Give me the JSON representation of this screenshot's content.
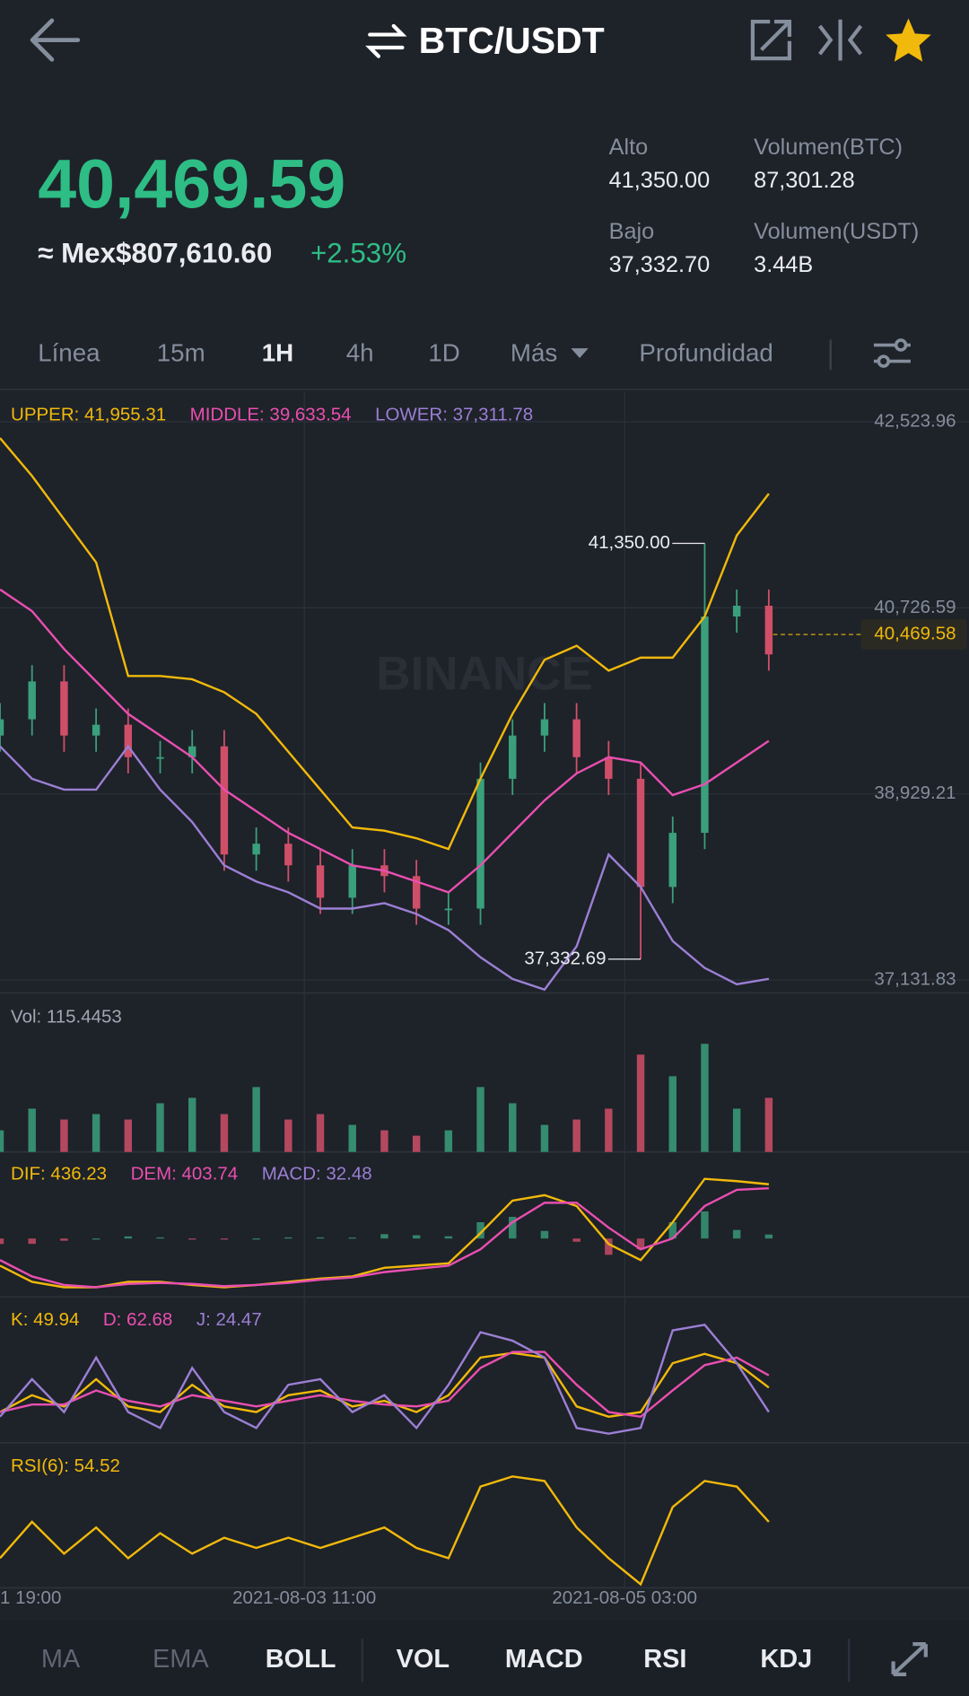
{
  "header": {
    "title": "BTC/USDT"
  },
  "ticker": {
    "price": "40,469.59",
    "fiat": "≈ Mex$807,610.60",
    "change": "+2.53%",
    "stats": [
      {
        "label": "Alto",
        "value": "41,350.00"
      },
      {
        "label": "Volumen(BTC)",
        "value": "87,301.28"
      },
      {
        "label": "Bajo",
        "value": "37,332.70"
      },
      {
        "label": "Volumen(USDT)",
        "value": "3.44B"
      }
    ]
  },
  "intervals": [
    "Línea",
    "15m",
    "1H",
    "4h",
    "1D",
    "Más",
    "Profundidad"
  ],
  "indicators": [
    "MA",
    "EMA",
    "BOLL",
    "VOL",
    "MACD",
    "RSI",
    "KDJ"
  ],
  "watermark": "BINANCE",
  "chart_data": [
    {
      "type": "candlestick",
      "x": [
        -38,
        -34,
        -30,
        -26,
        -22,
        -18,
        -14,
        -10,
        -6,
        -2,
        2,
        6,
        10,
        14,
        18,
        22,
        26,
        30,
        34,
        38,
        42,
        46,
        50,
        54,
        58
      ],
      "xlim": [
        -38,
        83
      ],
      "xticks": [
        {
          "value": -40,
          "label": "1 19:00"
        },
        {
          "value": 0,
          "label": "2021-08-03 11:00"
        },
        {
          "value": 40,
          "label": "2021-08-05 03:00"
        }
      ],
      "open": [
        39493,
        39650,
        40016,
        39493,
        39598,
        39284,
        39284,
        39389,
        38344,
        38448,
        38239,
        37926,
        38239,
        38135,
        37821,
        37821,
        39075,
        39493,
        39650,
        39284,
        39075,
        38030,
        38553,
        40643,
        40747
      ],
      "high": [
        39807,
        40173,
        40173,
        39755,
        39755,
        39441,
        39546,
        39546,
        38605,
        38605,
        38396,
        38396,
        38396,
        38292,
        37978,
        39232,
        39650,
        39807,
        39807,
        39441,
        39232,
        38710,
        41350.0,
        40904,
        40904
      ],
      "low": [
        39336,
        39493,
        39336,
        39336,
        39127,
        39127,
        39127,
        38187,
        38187,
        38082,
        37769,
        37769,
        37978,
        37664,
        37664,
        37664,
        38918,
        39336,
        39127,
        38918,
        37332.69,
        37873,
        38396,
        40486,
        40120
      ],
      "close": [
        39650,
        40016,
        39493,
        39598,
        39284,
        39284,
        39389,
        38344,
        38448,
        38239,
        37926,
        38239,
        38135,
        37821,
        37821,
        39075,
        39493,
        39650,
        39284,
        39075,
        38030,
        38553,
        40643,
        40747,
        40277
      ],
      "up_color": "#3a9f7b",
      "down_color": "#cf4f69",
      "series": [
        {
          "name": "UPPER: 41,955.31",
          "color": "#f0b90b",
          "values": [
            42367,
            42001,
            41583,
            41165,
            40068,
            40068,
            40037,
            39911,
            39702,
            39337,
            38971,
            38605,
            38574,
            38501,
            38397,
            39076,
            39702,
            40225,
            40361,
            40120,
            40246,
            40246,
            40643,
            41427,
            41830
          ]
        },
        {
          "name": "MIDDLE: 39,633.54",
          "color": "#e84fb0",
          "values": [
            40904,
            40695,
            40329,
            40016,
            39702,
            39493,
            39284,
            38971,
            38762,
            38553,
            38396,
            38239,
            38187,
            38083,
            37978,
            38239,
            38553,
            38866,
            39128,
            39284,
            39232,
            38918,
            39023,
            39232,
            39441
          ]
        },
        {
          "name": "LOWER: 37,311.78",
          "color": "#9b7fd4",
          "values": [
            39389,
            39075,
            38971,
            38971,
            39389,
            38971,
            38657,
            38239,
            38083,
            37978,
            37821,
            37821,
            37874,
            37769,
            37613,
            37351,
            37142,
            37038,
            37456,
            38344,
            38030,
            37508,
            37247,
            37090,
            37142
          ]
        }
      ],
      "ylim": [
        37027,
        42733
      ],
      "yticks": [
        {
          "value": 42523.96,
          "label": "42,523.96"
        },
        {
          "value": 40726.59,
          "label": "40,726.59"
        },
        {
          "value": 38929.21,
          "label": "38,929.21"
        },
        {
          "value": 37131.83,
          "label": "37,131.83"
        }
      ],
      "last_price": {
        "value": 40469.58,
        "label": "40,469.58"
      },
      "high_label": "41,350.00",
      "low_label": "37,332.69",
      "grid": true
    },
    {
      "type": "bar",
      "series": [
        {
          "name": "Vol: 115.4453",
          "color": "#a0a7b4",
          "values": [
            20,
            40,
            30,
            35,
            30,
            45,
            50,
            35,
            60,
            30,
            35,
            25,
            20,
            15,
            20,
            60,
            45,
            25,
            30,
            40,
            90,
            70,
            100,
            40,
            50
          ]
        }
      ],
      "ylim": [
        0,
        135
      ]
    },
    {
      "type": "line",
      "series": [
        {
          "name": "DIF: 436.23",
          "color": "#f0b90b",
          "values": [
            -218,
            -348,
            -392,
            -392,
            -348,
            -348,
            -374,
            -392,
            -374,
            -348,
            -322,
            -305,
            -235,
            -218,
            -200,
            44,
            305,
            348,
            261,
            -44,
            -174,
            131,
            479,
            461,
            436
          ]
        },
        {
          "name": "DEM: 403.74",
          "color": "#e84fb0",
          "values": [
            -174,
            -305,
            -374,
            -392,
            -365,
            -357,
            -365,
            -383,
            -374,
            -357,
            -331,
            -313,
            -270,
            -244,
            -218,
            -87,
            131,
            287,
            287,
            87,
            -87,
            0,
            261,
            392,
            404
          ]
        },
        {
          "name": "MACD: 32.48",
          "color": "#9b7fd4",
          "type": "bar",
          "values": [
            -44,
            -43,
            -18,
            0,
            17,
            9,
            -9,
            -9,
            0,
            9,
            9,
            8,
            35,
            26,
            18,
            131,
            174,
            61,
            -26,
            -131,
            -87,
            131,
            218,
            69,
            32
          ]
        }
      ],
      "ylim": [
        -478,
        609
      ]
    },
    {
      "type": "line",
      "series": [
        {
          "name": "K: 49.94",
          "color": "#f0b90b",
          "values": [
            24,
            42,
            30,
            59,
            30,
            24,
            53,
            30,
            24,
            42,
            47,
            30,
            36,
            24,
            42,
            82,
            87,
            82,
            30,
            19,
            24,
            76,
            86,
            76,
            50
          ]
        },
        {
          "name": "D: 62.68",
          "color": "#e84fb0",
          "values": [
            24,
            32,
            32,
            47,
            36,
            30,
            42,
            36,
            30,
            36,
            42,
            36,
            32,
            30,
            36,
            71,
            88,
            88,
            53,
            24,
            19,
            47,
            74,
            82,
            63
          ]
        },
        {
          "name": "J: 24.47",
          "color": "#9b7fd4",
          "values": [
            19,
            59,
            24,
            82,
            24,
            7,
            71,
            24,
            7,
            53,
            59,
            24,
            42,
            7,
            53,
            109,
            100,
            82,
            7,
            1,
            7,
            111,
            117,
            76,
            24
          ]
        }
      ],
      "ylim": [
        -10,
        134
      ]
    },
    {
      "type": "line",
      "series": [
        {
          "name": "RSI(6): 54.52",
          "color": "#f0b90b",
          "values": [
            23,
            55,
            27,
            50,
            23,
            45,
            27,
            41,
            32,
            41,
            32,
            41,
            50,
            32,
            23,
            86,
            95,
            91,
            50,
            23,
            0,
            68,
            91,
            86,
            55
          ]
        }
      ],
      "ylim": [
        -5,
        114
      ]
    }
  ]
}
